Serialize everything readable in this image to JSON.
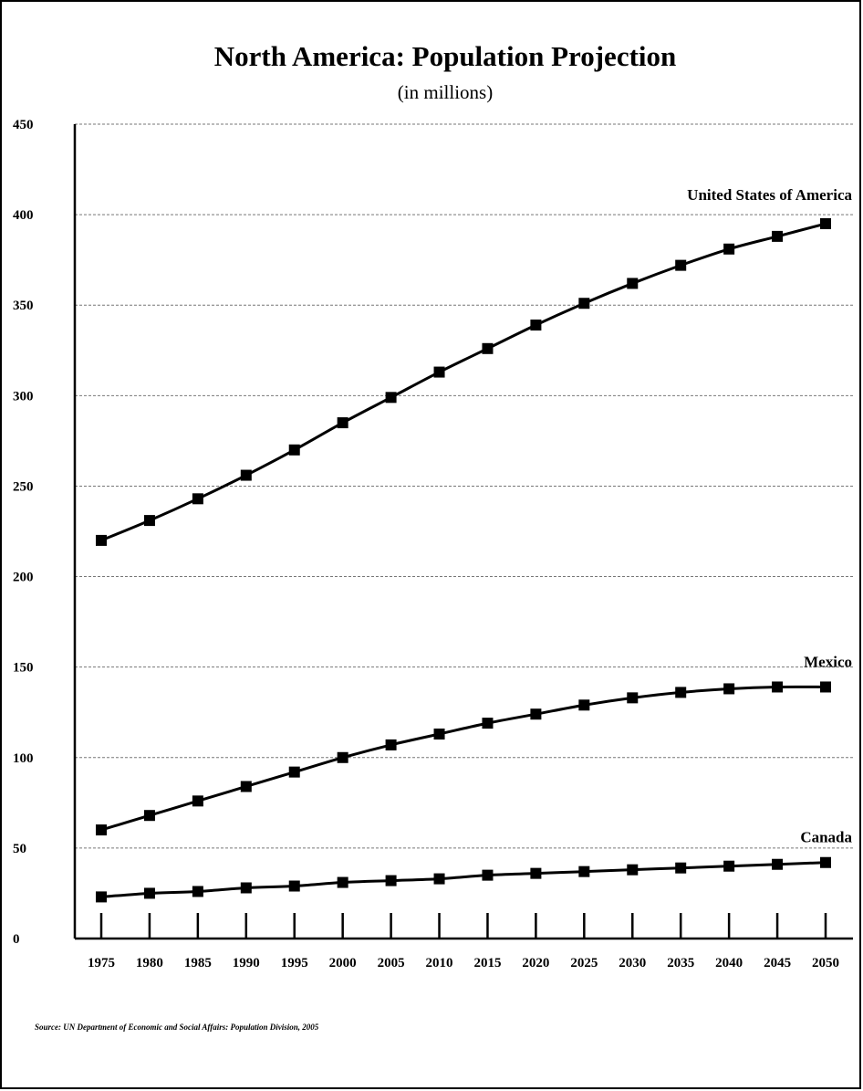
{
  "chart_data": {
    "type": "line",
    "title": "North America: Population Projection",
    "subtitle": "(in millions)",
    "xlabel": "",
    "ylabel": "",
    "ylim": [
      0,
      450
    ],
    "yticks": [
      0,
      50,
      100,
      150,
      200,
      250,
      300,
      350,
      400,
      450
    ],
    "x": [
      "1975",
      "1980",
      "1985",
      "1990",
      "1995",
      "2000",
      "2005",
      "2010",
      "2015",
      "2020",
      "2025",
      "2030",
      "2035",
      "2040",
      "2045",
      "2050"
    ],
    "grid": "horizontal dashed",
    "legend": "none — series labelled directly above line ends",
    "series": [
      {
        "name": "United States of America",
        "values": [
          220,
          231,
          243,
          256,
          270,
          285,
          299,
          313,
          326,
          339,
          351,
          362,
          372,
          381,
          388,
          395
        ]
      },
      {
        "name": "Mexico",
        "values": [
          60,
          68,
          76,
          84,
          92,
          100,
          107,
          113,
          119,
          124,
          129,
          133,
          136,
          138,
          139,
          139
        ]
      },
      {
        "name": "Canada",
        "values": [
          23,
          25,
          26,
          28,
          29,
          31,
          32,
          33,
          35,
          36,
          37,
          38,
          39,
          40,
          41,
          42
        ]
      }
    ],
    "source": "Source: UN Department of Economic and Social Affairs: Population Division, 2005"
  },
  "colors": {
    "line": "#000000",
    "grid": "#777777",
    "background": "#ffffff"
  }
}
